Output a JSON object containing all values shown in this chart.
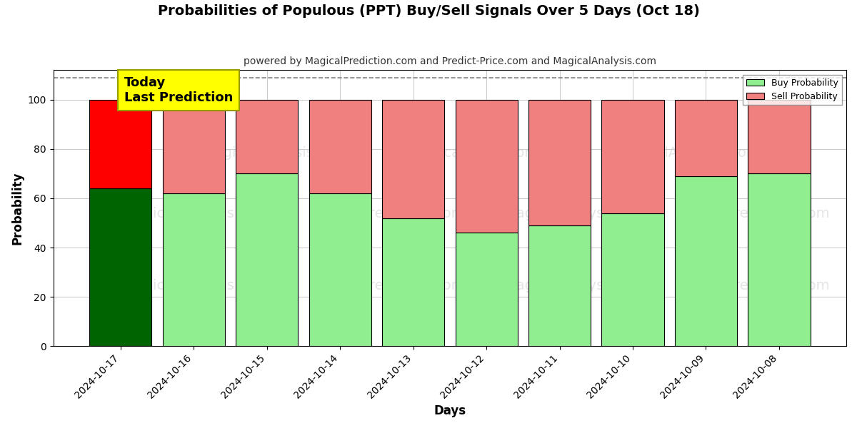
{
  "title": "Probabilities of Populous (PPT) Buy/Sell Signals Over 5 Days (Oct 18)",
  "subtitle": "powered by MagicalPrediction.com and Predict-Price.com and MagicalAnalysis.com",
  "xlabel": "Days",
  "ylabel": "Probability",
  "categories": [
    "2024-10-17",
    "2024-10-16",
    "2024-10-15",
    "2024-10-14",
    "2024-10-13",
    "2024-10-12",
    "2024-10-11",
    "2024-10-10",
    "2024-10-09",
    "2024-10-08"
  ],
  "buy_values": [
    64,
    62,
    70,
    62,
    52,
    46,
    49,
    54,
    69,
    70
  ],
  "sell_values": [
    36,
    38,
    30,
    38,
    48,
    54,
    51,
    46,
    31,
    30
  ],
  "today_buy_color": "#006400",
  "today_sell_color": "#ff0000",
  "normal_buy_color": "#90EE90",
  "normal_sell_color": "#F08080",
  "legend_buy_color": "#90EE90",
  "legend_sell_color": "#F08080",
  "bar_edgecolor": "#000000",
  "ylim": [
    0,
    112
  ],
  "yticks": [
    0,
    20,
    40,
    60,
    80,
    100
  ],
  "dashed_line_y": 109,
  "today_label_text": "Today\nLast Prediction",
  "today_label_bg": "#ffff00",
  "background_color": "#ffffff",
  "grid_color": "#cccccc",
  "figsize": [
    12.0,
    6.0
  ],
  "dpi": 100,
  "bar_width": 0.85
}
